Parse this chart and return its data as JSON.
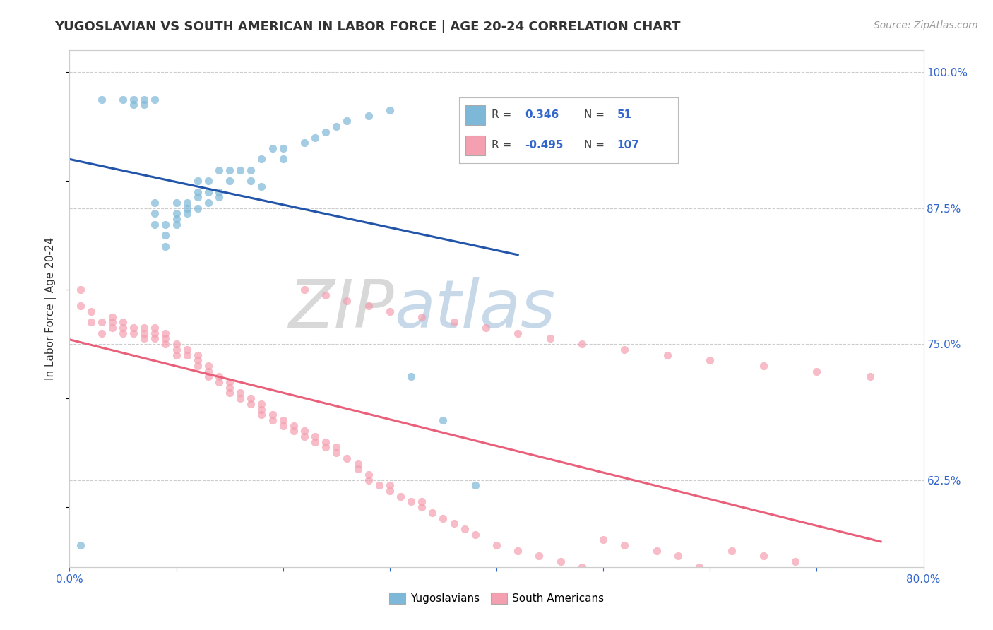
{
  "title": "YUGOSLAVIAN VS SOUTH AMERICAN IN LABOR FORCE | AGE 20-24 CORRELATION CHART",
  "source_text": "Source: ZipAtlas.com",
  "ylabel": "In Labor Force | Age 20-24",
  "xlim": [
    0.0,
    0.8
  ],
  "ylim": [
    0.545,
    1.02
  ],
  "xticks": [
    0.0,
    0.1,
    0.2,
    0.3,
    0.4,
    0.5,
    0.6,
    0.7,
    0.8
  ],
  "yticks_right": [
    0.625,
    0.75,
    0.875,
    1.0
  ],
  "ytick_right_labels": [
    "62.5%",
    "75.0%",
    "87.5%",
    "100.0%"
  ],
  "blue_R": 0.346,
  "blue_N": 51,
  "pink_R": -0.495,
  "pink_N": 107,
  "blue_color": "#7eb8d9",
  "pink_color": "#f4a0b0",
  "trend_blue_color": "#2255aa",
  "trend_pink_color": "#e8607a",
  "watermark_zip": "ZIP",
  "watermark_atlas": "atlas",
  "legend_label_blue": "Yugoslavians",
  "legend_label_pink": "South Americans",
  "blue_scatter_x": [
    0.01,
    0.03,
    0.05,
    0.06,
    0.06,
    0.07,
    0.07,
    0.08,
    0.08,
    0.08,
    0.08,
    0.09,
    0.09,
    0.09,
    0.1,
    0.1,
    0.1,
    0.1,
    0.11,
    0.11,
    0.11,
    0.12,
    0.12,
    0.12,
    0.12,
    0.13,
    0.13,
    0.13,
    0.14,
    0.14,
    0.14,
    0.15,
    0.15,
    0.16,
    0.17,
    0.17,
    0.18,
    0.18,
    0.19,
    0.2,
    0.2,
    0.22,
    0.23,
    0.24,
    0.25,
    0.26,
    0.28,
    0.3,
    0.32,
    0.35,
    0.38
  ],
  "blue_scatter_y": [
    0.565,
    0.975,
    0.975,
    0.975,
    0.97,
    0.975,
    0.97,
    0.86,
    0.87,
    0.88,
    0.975,
    0.84,
    0.85,
    0.86,
    0.86,
    0.865,
    0.87,
    0.88,
    0.87,
    0.875,
    0.88,
    0.875,
    0.885,
    0.89,
    0.9,
    0.88,
    0.89,
    0.9,
    0.885,
    0.89,
    0.91,
    0.9,
    0.91,
    0.91,
    0.9,
    0.91,
    0.895,
    0.92,
    0.93,
    0.92,
    0.93,
    0.935,
    0.94,
    0.945,
    0.95,
    0.955,
    0.96,
    0.965,
    0.72,
    0.68,
    0.62
  ],
  "pink_scatter_x": [
    0.01,
    0.01,
    0.02,
    0.02,
    0.03,
    0.03,
    0.04,
    0.04,
    0.04,
    0.05,
    0.05,
    0.05,
    0.06,
    0.06,
    0.07,
    0.07,
    0.07,
    0.08,
    0.08,
    0.08,
    0.09,
    0.09,
    0.09,
    0.1,
    0.1,
    0.1,
    0.11,
    0.11,
    0.12,
    0.12,
    0.12,
    0.13,
    0.13,
    0.13,
    0.14,
    0.14,
    0.15,
    0.15,
    0.15,
    0.16,
    0.16,
    0.17,
    0.17,
    0.18,
    0.18,
    0.18,
    0.19,
    0.19,
    0.2,
    0.2,
    0.21,
    0.21,
    0.22,
    0.22,
    0.23,
    0.23,
    0.24,
    0.24,
    0.25,
    0.25,
    0.26,
    0.27,
    0.27,
    0.28,
    0.28,
    0.29,
    0.3,
    0.3,
    0.31,
    0.32,
    0.33,
    0.33,
    0.34,
    0.35,
    0.36,
    0.37,
    0.38,
    0.4,
    0.42,
    0.44,
    0.46,
    0.48,
    0.5,
    0.52,
    0.55,
    0.57,
    0.59,
    0.62,
    0.65,
    0.68,
    0.22,
    0.24,
    0.26,
    0.28,
    0.3,
    0.33,
    0.36,
    0.39,
    0.42,
    0.45,
    0.48,
    0.52,
    0.56,
    0.6,
    0.65,
    0.7,
    0.75
  ],
  "pink_scatter_y": [
    0.8,
    0.785,
    0.78,
    0.77,
    0.77,
    0.76,
    0.775,
    0.77,
    0.765,
    0.77,
    0.765,
    0.76,
    0.765,
    0.76,
    0.755,
    0.765,
    0.76,
    0.755,
    0.76,
    0.765,
    0.75,
    0.755,
    0.76,
    0.74,
    0.745,
    0.75,
    0.74,
    0.745,
    0.73,
    0.735,
    0.74,
    0.72,
    0.725,
    0.73,
    0.715,
    0.72,
    0.705,
    0.71,
    0.715,
    0.7,
    0.705,
    0.695,
    0.7,
    0.685,
    0.69,
    0.695,
    0.68,
    0.685,
    0.675,
    0.68,
    0.67,
    0.675,
    0.665,
    0.67,
    0.66,
    0.665,
    0.655,
    0.66,
    0.65,
    0.655,
    0.645,
    0.635,
    0.64,
    0.625,
    0.63,
    0.62,
    0.615,
    0.62,
    0.61,
    0.605,
    0.6,
    0.605,
    0.595,
    0.59,
    0.585,
    0.58,
    0.575,
    0.565,
    0.56,
    0.555,
    0.55,
    0.545,
    0.57,
    0.565,
    0.56,
    0.555,
    0.545,
    0.56,
    0.555,
    0.55,
    0.8,
    0.795,
    0.79,
    0.785,
    0.78,
    0.775,
    0.77,
    0.765,
    0.76,
    0.755,
    0.75,
    0.745,
    0.74,
    0.735,
    0.73,
    0.725,
    0.72
  ]
}
